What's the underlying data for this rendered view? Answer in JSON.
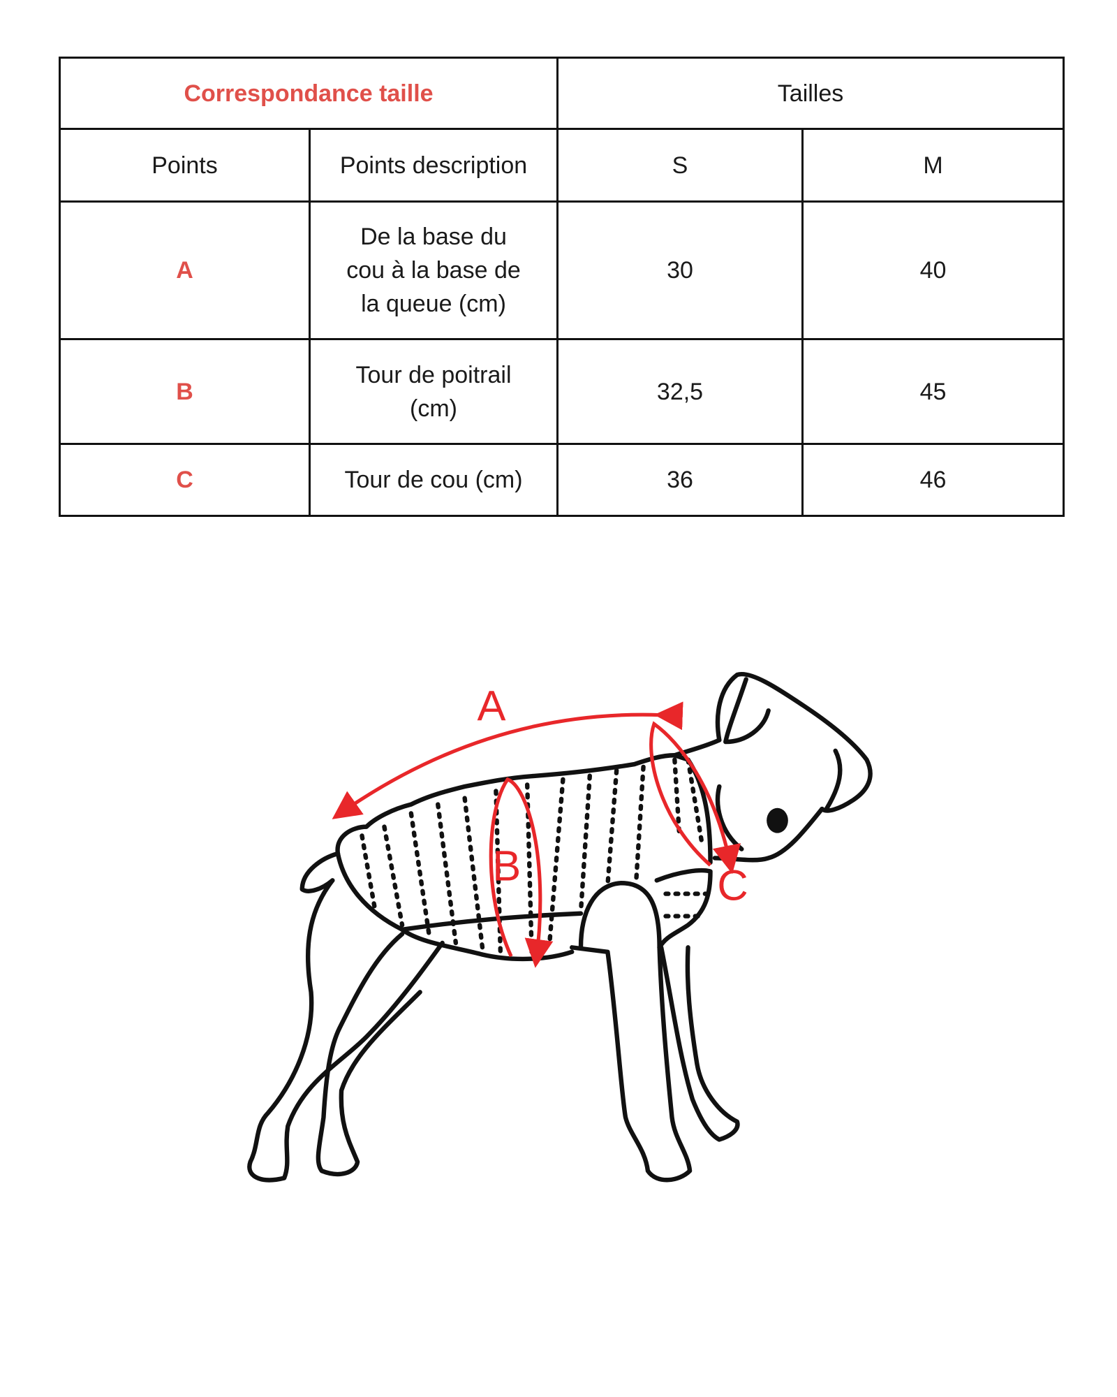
{
  "table": {
    "title": "Correspondance taille",
    "sizes_header": "Tailles",
    "columns": [
      "Points",
      "Points description",
      "S",
      "M"
    ],
    "rows": [
      {
        "point": "A",
        "description": "De la base du cou à la base de la queue (cm)",
        "S": "30",
        "M": "40"
      },
      {
        "point": "B",
        "description": "Tour de poitrail (cm)",
        "S": "32,5",
        "M": "45"
      },
      {
        "point": "C",
        "description": "Tour de cou (cm)",
        "S": "36",
        "M": "46"
      }
    ]
  },
  "diagram": {
    "labels": {
      "a": "A",
      "b": "B",
      "c": "C"
    },
    "accent_color": "#e8272a",
    "title_color": "#e0504a"
  }
}
